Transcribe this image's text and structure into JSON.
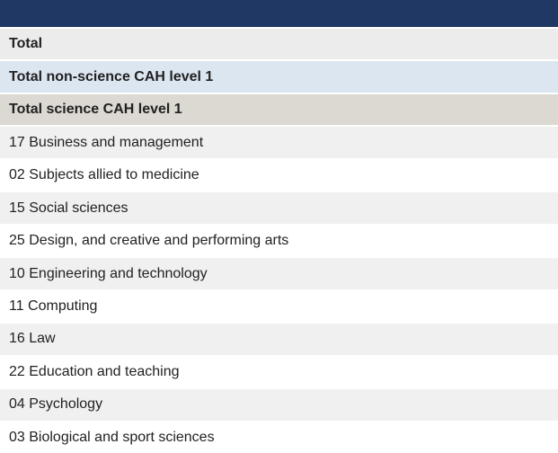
{
  "colors": {
    "header_bg": "#1f3864",
    "total_bg": "#ececec",
    "nonscience_bg": "#dce6f1",
    "science_bg": "#dbd9d2",
    "shaded_bg": "#f0f0f0",
    "plain_bg": "#ffffff",
    "text": "#212121",
    "separator": "#ffffff"
  },
  "table": {
    "rows": [
      {
        "label": "Total",
        "variant": "total",
        "bold": true
      },
      {
        "label": "Total non-science CAH level 1",
        "variant": "nonscience",
        "bold": true
      },
      {
        "label": "Total science CAH level 1",
        "variant": "science",
        "bold": true
      },
      {
        "label": "17 Business and management",
        "variant": "shaded",
        "bold": false
      },
      {
        "label": "02 Subjects allied to medicine",
        "variant": "plain",
        "bold": false
      },
      {
        "label": "15 Social sciences",
        "variant": "shaded",
        "bold": false
      },
      {
        "label": "25 Design, and creative and performing arts",
        "variant": "plain",
        "bold": false
      },
      {
        "label": "10 Engineering and technology",
        "variant": "shaded",
        "bold": false
      },
      {
        "label": "11 Computing",
        "variant": "plain",
        "bold": false
      },
      {
        "label": "16 Law",
        "variant": "shaded",
        "bold": false
      },
      {
        "label": "22 Education and teaching",
        "variant": "plain",
        "bold": false
      },
      {
        "label": "04 Psychology",
        "variant": "shaded",
        "bold": false
      },
      {
        "label": "03 Biological and sport sciences",
        "variant": "plain",
        "bold": false
      }
    ]
  }
}
